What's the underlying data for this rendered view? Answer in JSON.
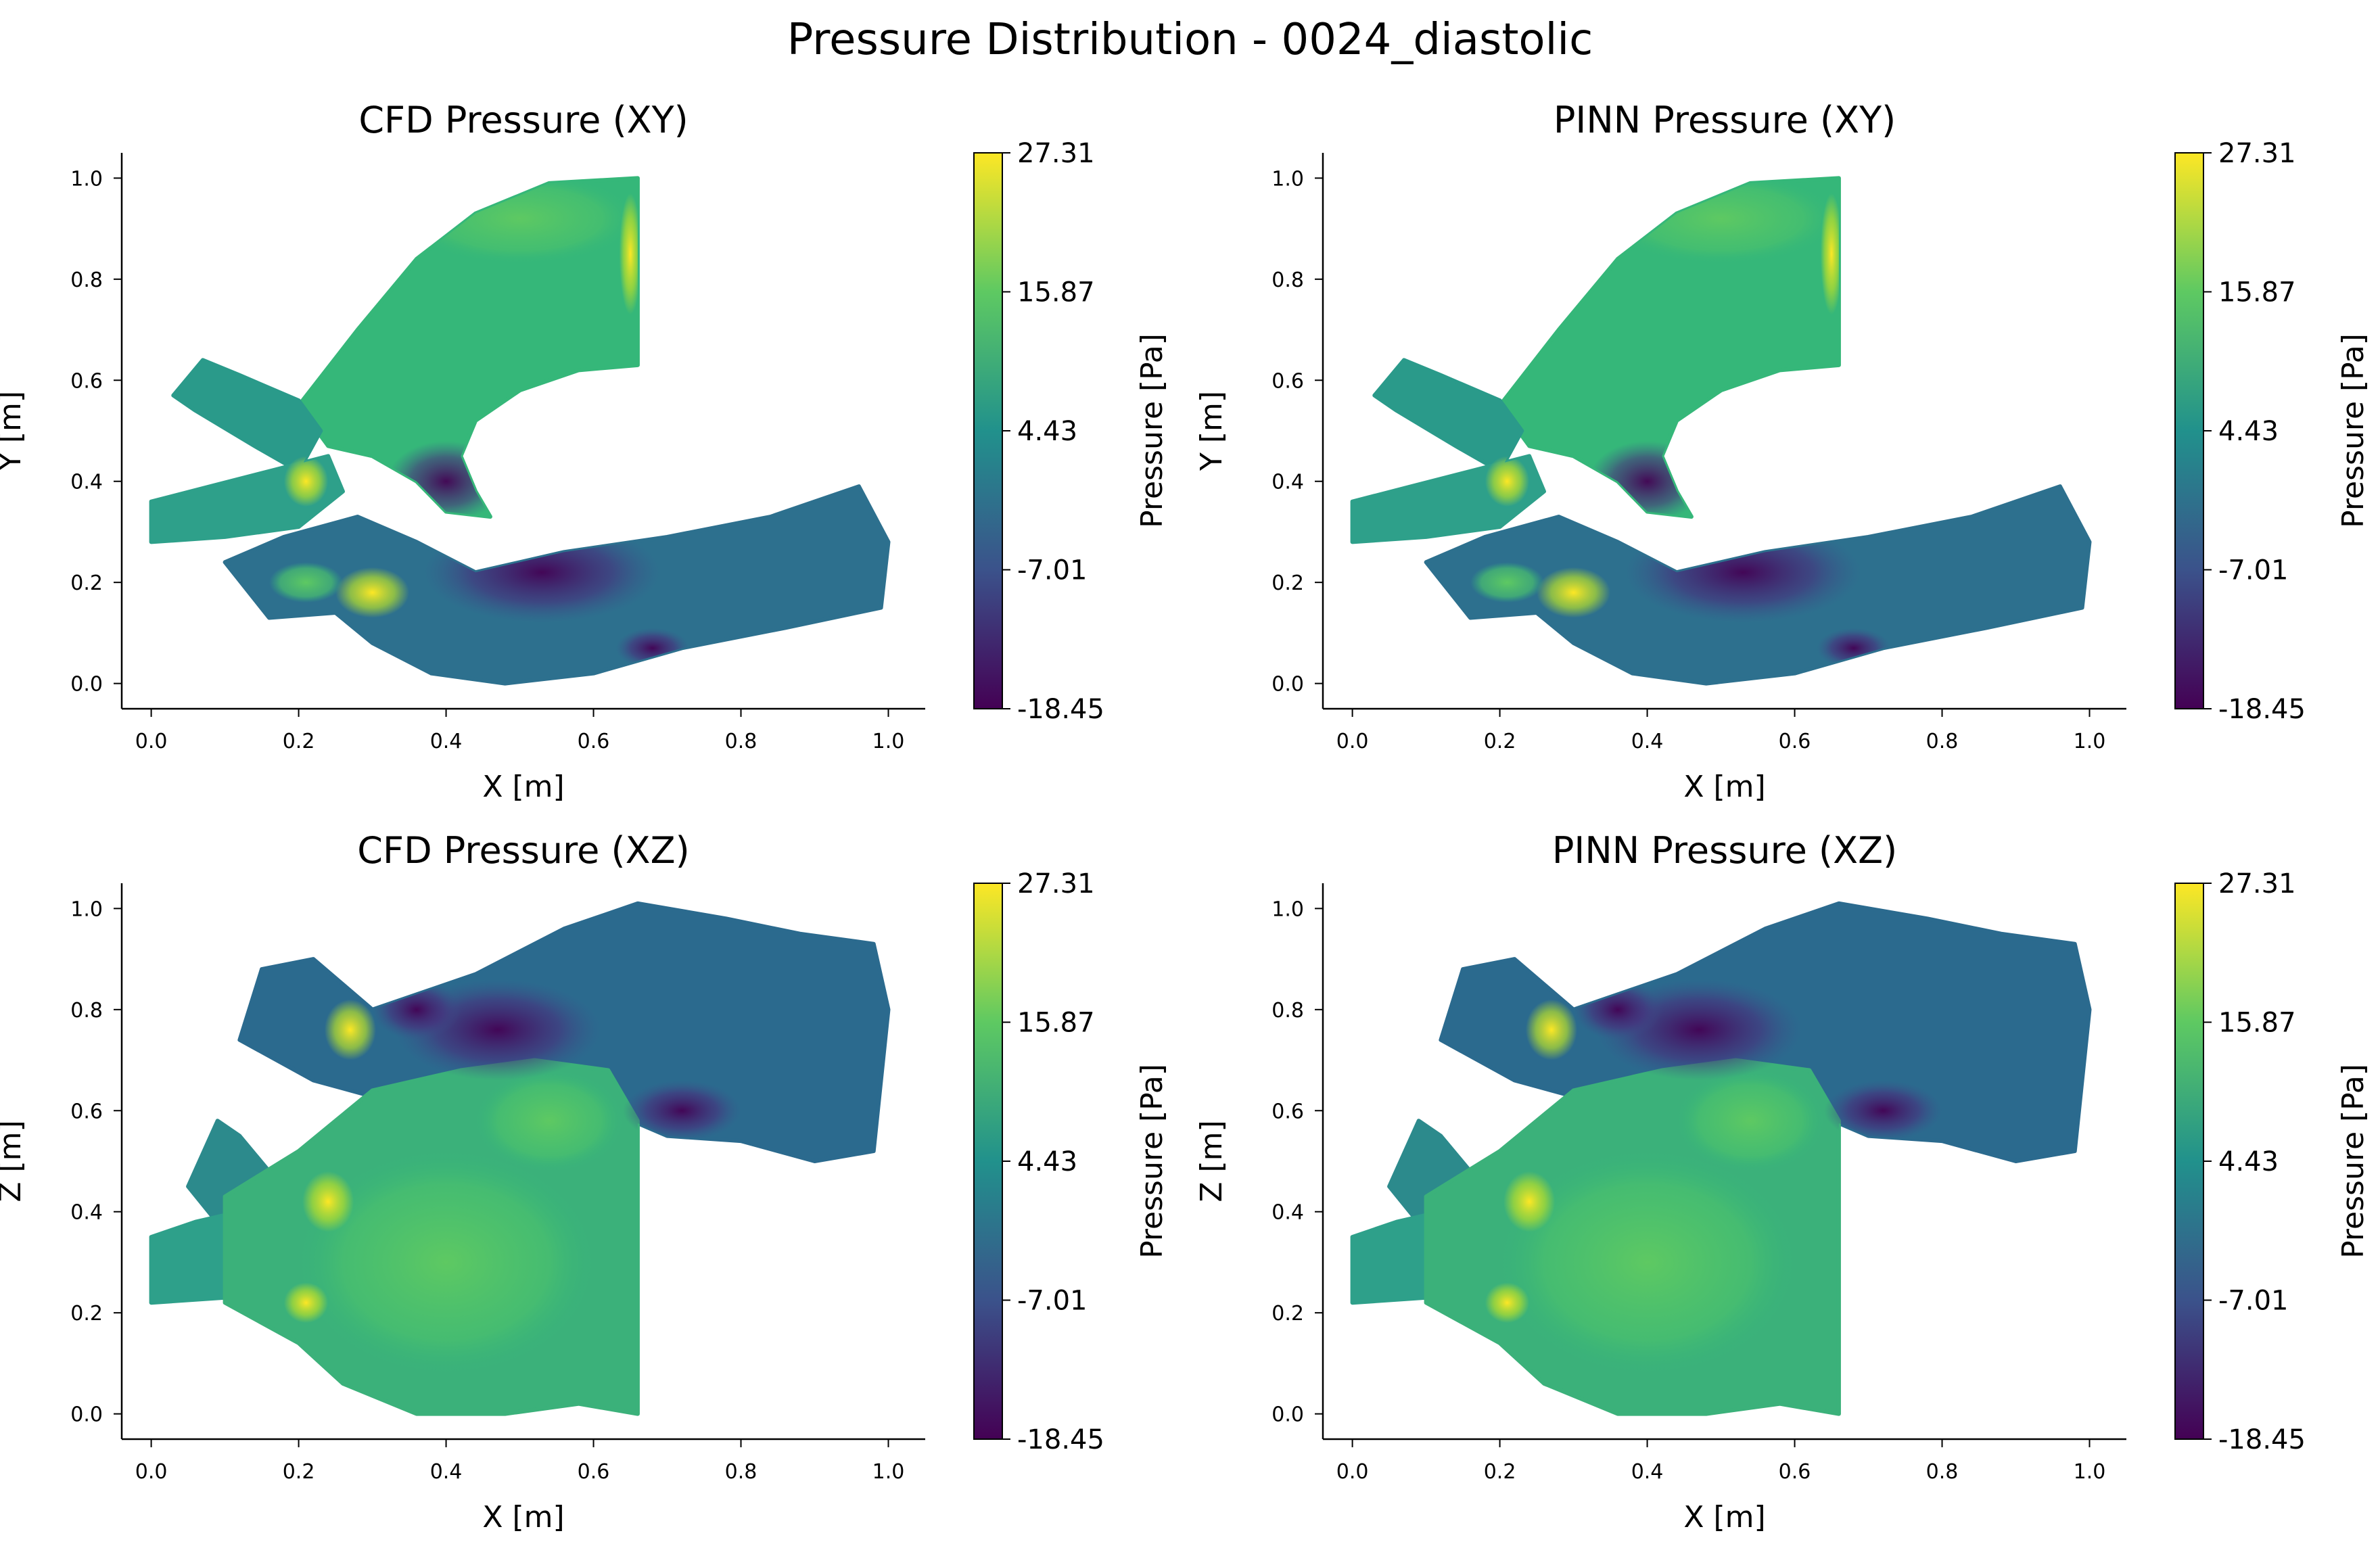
{
  "figure_title": "Pressure Distribution - 0024_diastolic",
  "colors": {
    "colormap": [
      "#440154",
      "#3b528b",
      "#21918c",
      "#5ec962",
      "#fde725"
    ],
    "axis": "#000000",
    "text": "#000000"
  },
  "colorbar": {
    "label": "Pressure [Pa]",
    "ticks": [
      "27.31",
      "15.87",
      "4.43",
      "-7.01",
      "-18.45"
    ]
  },
  "chart_data": [
    {
      "type": "scatter",
      "id": "cfd_xy",
      "title": "CFD Pressure (XY)",
      "xlabel": "X [m]",
      "ylabel": "Y [m]",
      "xlim": [
        -0.04,
        1.05
      ],
      "ylim": [
        -0.05,
        1.05
      ],
      "xticks": [
        "0.0",
        "0.2",
        "0.4",
        "0.6",
        "0.8",
        "1.0"
      ],
      "yticks": [
        "0.0",
        "0.2",
        "0.4",
        "0.6",
        "0.8",
        "1.0"
      ],
      "color_range": [
        -18.45,
        27.31
      ],
      "colorbar_label": "Pressure [Pa]"
    },
    {
      "type": "scatter",
      "id": "pinn_xy",
      "title": "PINN Pressure (XY)",
      "xlabel": "X [m]",
      "ylabel": "Y [m]",
      "xlim": [
        -0.04,
        1.05
      ],
      "ylim": [
        -0.05,
        1.05
      ],
      "xticks": [
        "0.0",
        "0.2",
        "0.4",
        "0.6",
        "0.8",
        "1.0"
      ],
      "yticks": [
        "0.0",
        "0.2",
        "0.4",
        "0.6",
        "0.8",
        "1.0"
      ],
      "color_range": [
        -18.45,
        27.31
      ],
      "colorbar_label": "Pressure [Pa]"
    },
    {
      "type": "scatter",
      "id": "cfd_xz",
      "title": "CFD Pressure (XZ)",
      "xlabel": "X [m]",
      "ylabel": "Z [m]",
      "xlim": [
        -0.04,
        1.05
      ],
      "ylim": [
        -0.05,
        1.05
      ],
      "xticks": [
        "0.0",
        "0.2",
        "0.4",
        "0.6",
        "0.8",
        "1.0"
      ],
      "yticks": [
        "0.0",
        "0.2",
        "0.4",
        "0.6",
        "0.8",
        "1.0"
      ],
      "color_range": [
        -18.45,
        27.31
      ],
      "colorbar_label": "Pressure [Pa]"
    },
    {
      "type": "scatter",
      "id": "pinn_xz",
      "title": "PINN Pressure (XZ)",
      "xlabel": "X [m]",
      "ylabel": "Z [m]",
      "xlim": [
        -0.04,
        1.05
      ],
      "ylim": [
        -0.05,
        1.05
      ],
      "xticks": [
        "0.0",
        "0.2",
        "0.4",
        "0.6",
        "0.8",
        "1.0"
      ],
      "yticks": [
        "0.0",
        "0.2",
        "0.4",
        "0.6",
        "0.8",
        "1.0"
      ],
      "color_range": [
        -18.45,
        27.31
      ],
      "colorbar_label": "Pressure [Pa]"
    }
  ]
}
